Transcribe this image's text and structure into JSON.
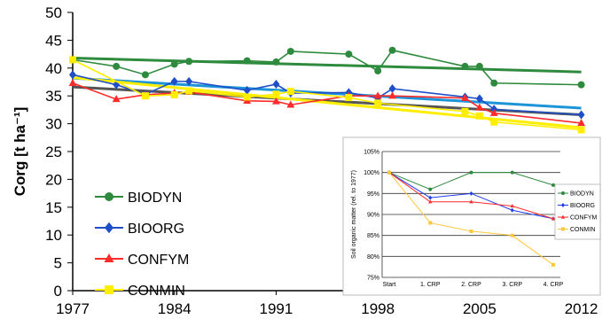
{
  "chart_data": [
    {
      "type": "line",
      "xlabel": "",
      "ylabel": "Corg [t ha⁻¹]",
      "xlim": [
        1977,
        2013
      ],
      "ylim": [
        0,
        50
      ],
      "x_ticks": [
        "1977",
        "1984",
        "1991",
        "1998",
        "2005",
        "2012"
      ],
      "x_tick_values": [
        1977,
        1984,
        1991,
        1998,
        2005,
        2012
      ],
      "y_ticks": [
        "0",
        "5",
        "10",
        "15",
        "20",
        "25",
        "30",
        "35",
        "40",
        "45",
        "50"
      ],
      "y_tick_values": [
        0,
        5,
        10,
        15,
        20,
        25,
        30,
        35,
        40,
        45,
        50
      ],
      "grid": false,
      "legend_position": "lower-left",
      "series": [
        {
          "name": "BIODYN",
          "color": "#2e8b3e",
          "marker": "circle",
          "x": [
            1977,
            1980,
            1982,
            1984,
            1985,
            1989,
            1991,
            1992,
            1996,
            1998,
            1999,
            2004,
            2005,
            2006,
            2012
          ],
          "y": [
            41.5,
            40.3,
            38.8,
            40.7,
            41.2,
            41.3,
            41.1,
            43.0,
            42.5,
            39.5,
            43.2,
            40.3,
            40.3,
            37.3,
            37.0
          ],
          "trend": [
            41.8,
            39.3
          ],
          "trend_color": "#2e8b3e"
        },
        {
          "name": "BIOORG",
          "color": "#1f4fc8",
          "marker": "diamond",
          "x": [
            1977,
            1980,
            1982,
            1984,
            1985,
            1989,
            1991,
            1992,
            1996,
            1998,
            1999,
            2004,
            2005,
            2006,
            2012
          ],
          "y": [
            38.8,
            37.0,
            35.3,
            37.6,
            37.6,
            36.0,
            37.1,
            35.5,
            35.6,
            34.6,
            36.3,
            34.8,
            34.5,
            32.6,
            31.6
          ],
          "trend": [
            38.2,
            32.8
          ],
          "trend_color": "#1c95d8"
        },
        {
          "name": "CONFYM",
          "color": "#ff2a2a",
          "marker": "triangle",
          "x": [
            1977,
            1980,
            1982,
            1984,
            1985,
            1989,
            1991,
            1992,
            1996,
            1998,
            1999,
            2004,
            2005,
            2006,
            2012
          ],
          "y": [
            37.3,
            34.4,
            35.2,
            35.5,
            35.7,
            34.1,
            34.0,
            33.4,
            35.0,
            35.0,
            35.0,
            34.6,
            32.9,
            31.9,
            30.1
          ],
          "trend": [
            36.6,
            31.6
          ],
          "trend_color": "#555555"
        },
        {
          "name": "CONMIN",
          "color": "#ffee00",
          "marker": "square",
          "x": [
            1977,
            1982,
            1984,
            1985,
            1989,
            1991,
            1992,
            1996,
            1998,
            2004,
            2005,
            2006,
            2012
          ],
          "y": [
            41.5,
            35.0,
            35.2,
            35.9,
            34.8,
            35.3,
            35.8,
            34.7,
            33.7,
            32.2,
            31.4,
            30.3,
            28.9
          ],
          "trend": [
            38.3,
            29.3
          ],
          "trend_color": "#ffee00"
        }
      ]
    },
    {
      "type": "line",
      "ylabel": "Soil organic matter (rel. to 1977)",
      "xlabel": "",
      "categories": [
        "Start",
        "1. CRP",
        "2. CRP",
        "3. CRP",
        "4. CRP"
      ],
      "ylim": [
        75,
        105
      ],
      "y_ticks": [
        "75%",
        "80%",
        "85%",
        "90%",
        "95%",
        "100%",
        "105%"
      ],
      "y_tick_values": [
        75,
        80,
        85,
        90,
        95,
        100,
        105
      ],
      "grid": true,
      "legend_position": "right",
      "series": [
        {
          "name": "BIODYN",
          "color": "#2e8b3e",
          "marker": "circle",
          "x": [
            0,
            1,
            2,
            3,
            4
          ],
          "y": [
            100,
            96,
            100,
            100,
            97
          ]
        },
        {
          "name": "BIOORG",
          "color": "#1f3cf0",
          "marker": "diamond",
          "x": [
            0,
            1,
            2,
            3,
            4
          ],
          "y": [
            100,
            94,
            95,
            91,
            89
          ]
        },
        {
          "name": "CONFYM",
          "color": "#ff2a2a",
          "marker": "triangle",
          "x": [
            0,
            1,
            2,
            3,
            4
          ],
          "y": [
            100,
            93,
            93,
            92,
            89
          ]
        },
        {
          "name": "CONMIN",
          "color": "#ffc83a",
          "marker": "square",
          "x": [
            0,
            1,
            2,
            3,
            4
          ],
          "y": [
            100,
            88,
            86,
            85,
            78
          ]
        }
      ]
    }
  ]
}
